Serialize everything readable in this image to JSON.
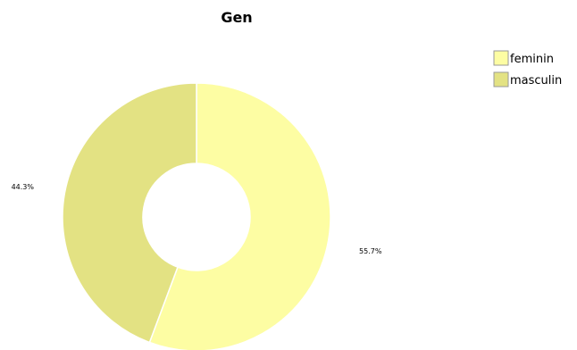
{
  "chart_data": {
    "type": "pie",
    "title": "Gen",
    "donut": true,
    "legend_position": "top-right",
    "slices": [
      {
        "label": "feminin",
        "value": 55.7,
        "percent_label": "55.7%",
        "color": "#fdfda3"
      },
      {
        "label": "masculin",
        "value": 44.3,
        "percent_label": "44.3%",
        "color": "#e3e283"
      }
    ]
  }
}
